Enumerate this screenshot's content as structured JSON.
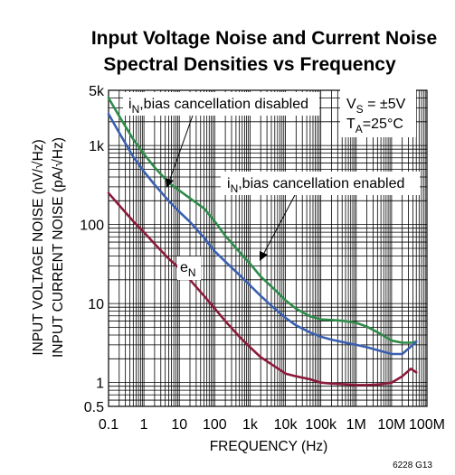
{
  "chart_data": {
    "type": "line",
    "title": [
      "Input Voltage Noise and Current Noise",
      "Spectral Densities vs Frequency"
    ],
    "xlabel": "FREQUENCY (Hz)",
    "ylabel": [
      "INPUT VOLTAGE NOISE (nV/√Hz)",
      "INPUT CURRENT NOISE (pA/√Hz)"
    ],
    "x_scale": "log",
    "y_scale": "log",
    "xlim": [
      0.1,
      100000000
    ],
    "ylim": [
      0.5,
      5000
    ],
    "grid": true,
    "x_ticks": [
      {
        "value": 0.1,
        "label": "0.1"
      },
      {
        "value": 1,
        "label": "1"
      },
      {
        "value": 10,
        "label": "10"
      },
      {
        "value": 100,
        "label": "100"
      },
      {
        "value": 1000,
        "label": "1k"
      },
      {
        "value": 10000,
        "label": "10k"
      },
      {
        "value": 100000,
        "label": "100k"
      },
      {
        "value": 1000000,
        "label": "1M"
      },
      {
        "value": 10000000,
        "label": "10M"
      },
      {
        "value": 100000000,
        "label": "100M"
      }
    ],
    "y_ticks": [
      {
        "value": 5000,
        "label": "5k"
      },
      {
        "value": 1000,
        "label": "1k"
      },
      {
        "value": 100,
        "label": "100"
      },
      {
        "value": 10,
        "label": "10"
      },
      {
        "value": 1,
        "label": "1"
      },
      {
        "value": 0.5,
        "label": "0.5"
      }
    ],
    "series": [
      {
        "name": "iN,bias cancellation disabled",
        "color": "#2e8b4a",
        "points": [
          [
            0.1,
            4000
          ],
          [
            0.2,
            2350
          ],
          [
            0.5,
            1200
          ],
          [
            1,
            780
          ],
          [
            2,
            530
          ],
          [
            5,
            340
          ],
          [
            10,
            270
          ],
          [
            20,
            215
          ],
          [
            50,
            160
          ],
          [
            100,
            110
          ],
          [
            200,
            72
          ],
          [
            500,
            45
          ],
          [
            1000,
            32
          ],
          [
            2000,
            22
          ],
          [
            5000,
            15
          ],
          [
            10000,
            11
          ],
          [
            20000,
            8.6
          ],
          [
            50000,
            6.9
          ],
          [
            100000,
            6.3
          ],
          [
            200000,
            6.2
          ],
          [
            500000,
            6.0
          ],
          [
            1000000,
            5.7
          ],
          [
            2000000,
            5.1
          ],
          [
            5000000,
            4.1
          ],
          [
            10000000,
            3.4
          ],
          [
            20000000,
            3.2
          ],
          [
            40000000,
            3.2
          ],
          [
            50000000,
            3.3
          ]
        ]
      },
      {
        "name": "iN,bias cancellation enabled",
        "color": "#3a5fb0",
        "points": [
          [
            0.1,
            2500
          ],
          [
            0.2,
            1450
          ],
          [
            0.5,
            720
          ],
          [
            1,
            470
          ],
          [
            2,
            320
          ],
          [
            5,
            200
          ],
          [
            10,
            145
          ],
          [
            20,
            108
          ],
          [
            50,
            68
          ],
          [
            100,
            46
          ],
          [
            200,
            34
          ],
          [
            500,
            23
          ],
          [
            1000,
            17
          ],
          [
            2000,
            12.5
          ],
          [
            5000,
            8.6
          ],
          [
            10000,
            6.6
          ],
          [
            20000,
            5.3
          ],
          [
            50000,
            4.3
          ],
          [
            100000,
            3.8
          ],
          [
            200000,
            3.5
          ],
          [
            500000,
            3.2
          ],
          [
            1000000,
            3.0
          ],
          [
            2000000,
            2.8
          ],
          [
            5000000,
            2.5
          ],
          [
            10000000,
            2.3
          ],
          [
            20000000,
            2.3
          ],
          [
            40000000,
            3.0
          ],
          [
            50000000,
            3.3
          ]
        ]
      },
      {
        "name": "eN",
        "color": "#8c1a3a",
        "points": [
          [
            0.1,
            250
          ],
          [
            0.2,
            175
          ],
          [
            0.5,
            110
          ],
          [
            1,
            80
          ],
          [
            2,
            57
          ],
          [
            5,
            37
          ],
          [
            10,
            28
          ],
          [
            20,
            20
          ],
          [
            50,
            12.5
          ],
          [
            100,
            8.7
          ],
          [
            200,
            6.0
          ],
          [
            500,
            3.8
          ],
          [
            1000,
            2.8
          ],
          [
            2000,
            2.1
          ],
          [
            5000,
            1.6
          ],
          [
            10000,
            1.3
          ],
          [
            20000,
            1.2
          ],
          [
            50000,
            1.1
          ],
          [
            100000,
            1.0
          ],
          [
            200000,
            0.97
          ],
          [
            500000,
            0.95
          ],
          [
            1000000,
            0.93
          ],
          [
            2000000,
            0.93
          ],
          [
            5000000,
            0.95
          ],
          [
            10000000,
            1.0
          ],
          [
            20000000,
            1.2
          ],
          [
            35000000,
            1.5
          ],
          [
            50000000,
            1.35
          ]
        ]
      }
    ],
    "annotations": {
      "disabled_label": {
        "main": "i",
        "sub": "N",
        "rest": ",bias cancellation disabled"
      },
      "enabled_label": {
        "main": "i",
        "sub": "N",
        "rest": ",bias cancellation enabled"
      },
      "en_label": {
        "main": "e",
        "sub": "N"
      },
      "conditions": {
        "vs": {
          "main": "V",
          "sub": "S",
          "rest": " = ±5V"
        },
        "ta": {
          "main": "T",
          "sub": "A",
          "rest": "=25°C"
        }
      }
    },
    "figure_id": "6228 G13"
  }
}
